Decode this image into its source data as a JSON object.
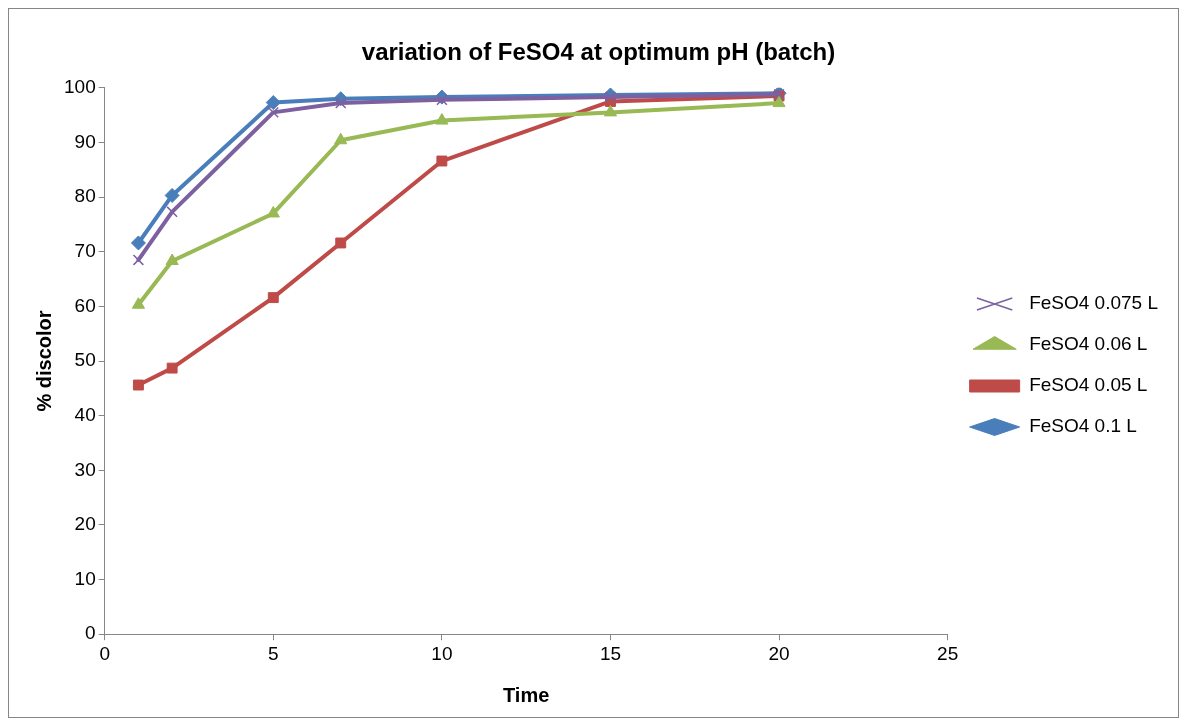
{
  "chart_data": {
    "type": "line",
    "title": "variation of FeSO4 at optimum pH (batch)",
    "xlabel": "Time",
    "ylabel": "% discolor",
    "x": [
      1,
      2,
      5,
      7,
      10,
      15,
      20
    ],
    "xlim": [
      0,
      25
    ],
    "xticks": [
      0,
      5,
      10,
      15,
      20,
      25
    ],
    "ylim": [
      0,
      100
    ],
    "yticks": [
      0,
      10,
      20,
      30,
      40,
      50,
      60,
      70,
      80,
      90,
      100
    ],
    "grid": false,
    "legend": "right",
    "line_style": "solid",
    "series": [
      {
        "name": "FeSO4 0.1 L",
        "color": "#4a7ebb",
        "marker": "diamond",
        "values": [
          71.6,
          80.3,
          97.3,
          98,
          98.3,
          98.7,
          99
        ]
      },
      {
        "name": "FeSO4 0.05 L",
        "color": "#be4b48",
        "marker": "square",
        "values": [
          45.6,
          48.7,
          61.6,
          71.6,
          86.6,
          97.5,
          98.5
        ]
      },
      {
        "name": "FeSO4 0.06 L",
        "color": "#98b954",
        "marker": "triangle",
        "values": [
          60.3,
          68.3,
          77,
          90.4,
          94,
          95.5,
          97.2
        ]
      },
      {
        "name": "FeSO4 0.075 L",
        "color": "#7d60a0",
        "marker": "cross",
        "values": [
          68.5,
          77.3,
          95.5,
          97.2,
          97.8,
          98.3,
          98.8
        ]
      }
    ]
  }
}
